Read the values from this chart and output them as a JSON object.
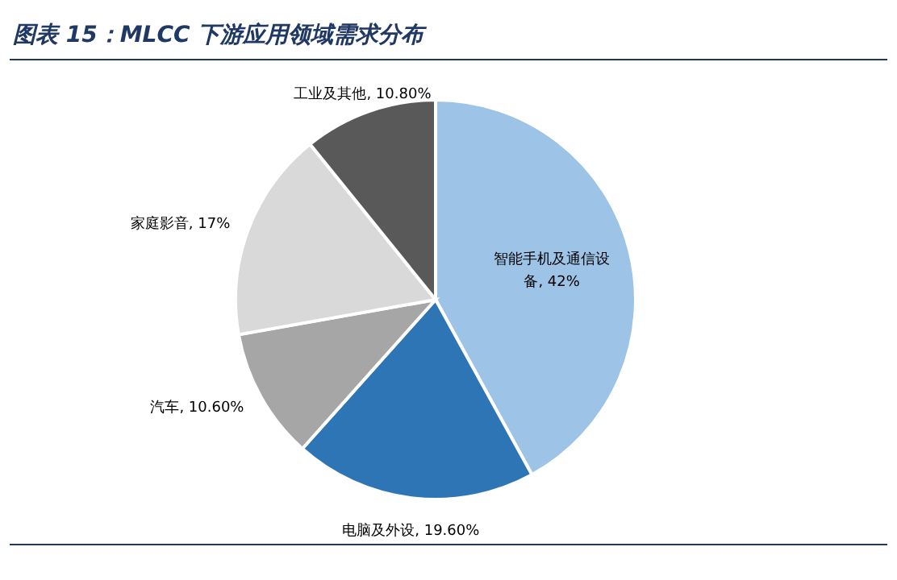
{
  "chart_data": {
    "type": "pie",
    "title": "图表 15：MLCC 下游应用领域需求分布",
    "categories": [
      "智能手机及通信设备",
      "电脑及外设",
      "汽车",
      "家庭影音",
      "工业及其他"
    ],
    "values": [
      42,
      19.6,
      10.6,
      17,
      10.8
    ],
    "value_labels": [
      "42%",
      "19.60%",
      "10.60%",
      "17%",
      "10.80%"
    ],
    "colors": [
      "#9dc3e6",
      "#2e75b6",
      "#a6a6a6",
      "#d9d9d9",
      "#595959"
    ]
  }
}
